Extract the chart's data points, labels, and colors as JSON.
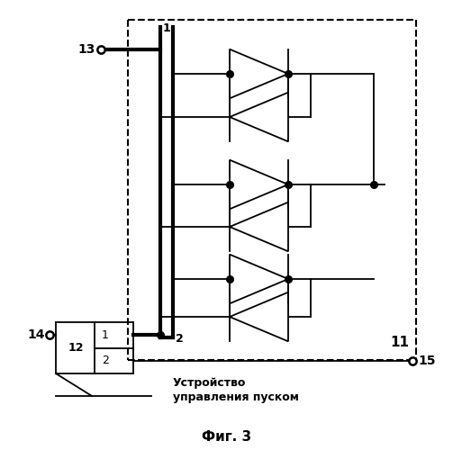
{
  "bg_color": "#ffffff",
  "line_color": "#000000",
  "fig_label": "Фиг. 3",
  "box_text1": "Устройство",
  "box_text2": "управления пуском",
  "label_11": "11",
  "label_13": "13",
  "label_14": "14",
  "label_15": "15",
  "label_12": "12",
  "label_1": "1",
  "label_2": "2"
}
